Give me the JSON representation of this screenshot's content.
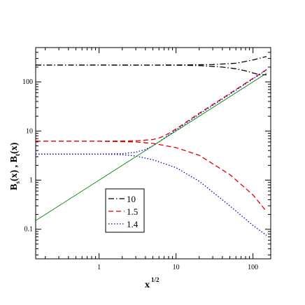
{
  "chart_data": {
    "type": "line",
    "xscale": "log",
    "yscale": "log",
    "xlim": [
      0.15,
      170
    ],
    "ylim": [
      0.025,
      500
    ],
    "xticks": [
      1,
      10,
      100
    ],
    "xtick_labels": [
      "1",
      "10",
      "100"
    ],
    "yticks": [
      0.1,
      1,
      10,
      100
    ],
    "ytick_labels": [
      "0.1",
      "1",
      "10",
      "100"
    ],
    "xlabel": {
      "base": "x",
      "sup": "1/2"
    },
    "ylabel": {
      "parts": [
        {
          "text": "B",
          "role": "base"
        },
        {
          "text": "s",
          "role": "sub"
        },
        {
          "text": "(x) ,  B",
          "role": "base"
        },
        {
          "text": "t",
          "role": "sub"
        },
        {
          "text": "(x)",
          "role": "base"
        }
      ]
    },
    "legend_position": "bottom-center",
    "series": [
      {
        "name": "10",
        "color": "#000000",
        "dash": "dashdot",
        "branch": "upper",
        "x": [
          0.15,
          1,
          5,
          10,
          30,
          60,
          100,
          150
        ],
        "y": [
          220,
          220,
          220,
          221,
          225,
          240,
          280,
          330
        ]
      },
      {
        "name": "",
        "color": "#000000",
        "dash": "dashdot",
        "branch": "lower",
        "x": [
          0.15,
          1,
          10,
          20,
          40,
          60,
          80,
          100,
          120,
          150
        ],
        "y": [
          220,
          220,
          219,
          215,
          200,
          185,
          168,
          152,
          140,
          140
        ]
      },
      {
        "name": "1.5",
        "color": "#dd0000",
        "dash": "dashed",
        "branch": "upper",
        "x": [
          0.15,
          1,
          3,
          5,
          6,
          7,
          10,
          20,
          50,
          100,
          150
        ],
        "y": [
          6.2,
          6.2,
          6.3,
          6.7,
          7.2,
          7.9,
          11,
          23,
          58,
          118,
          178
        ]
      },
      {
        "name": "",
        "color": "#dd0000",
        "dash": "dashed",
        "branch": "lower",
        "x": [
          0.15,
          1,
          3,
          5,
          10,
          20,
          50,
          100,
          150
        ],
        "y": [
          6.2,
          6.2,
          6.0,
          5.6,
          4.6,
          3.2,
          1.3,
          0.5,
          0.23
        ]
      },
      {
        "name": "1.4",
        "color": "#0000cc",
        "dash": "dotted",
        "branch": "upper",
        "x": [
          0.15,
          1,
          2,
          3,
          4,
          5,
          6,
          8,
          10,
          20,
          50,
          100,
          150
        ],
        "y": [
          3.4,
          3.4,
          3.45,
          3.7,
          4.2,
          5.0,
          6.0,
          8.3,
          10.5,
          22,
          56,
          115,
          175
        ]
      },
      {
        "name": "",
        "color": "#0000cc",
        "dash": "dotted",
        "branch": "lower",
        "x": [
          0.15,
          1,
          2,
          3,
          5,
          10,
          20,
          50,
          100,
          150
        ],
        "y": [
          3.4,
          3.4,
          3.3,
          3.1,
          2.6,
          1.8,
          0.95,
          0.3,
          0.12,
          0.075
        ]
      },
      {
        "name": "",
        "color": "#008000",
        "dash": "solid",
        "branch": "reference",
        "x": [
          0.15,
          150
        ],
        "y": [
          0.15,
          150
        ]
      }
    ]
  }
}
